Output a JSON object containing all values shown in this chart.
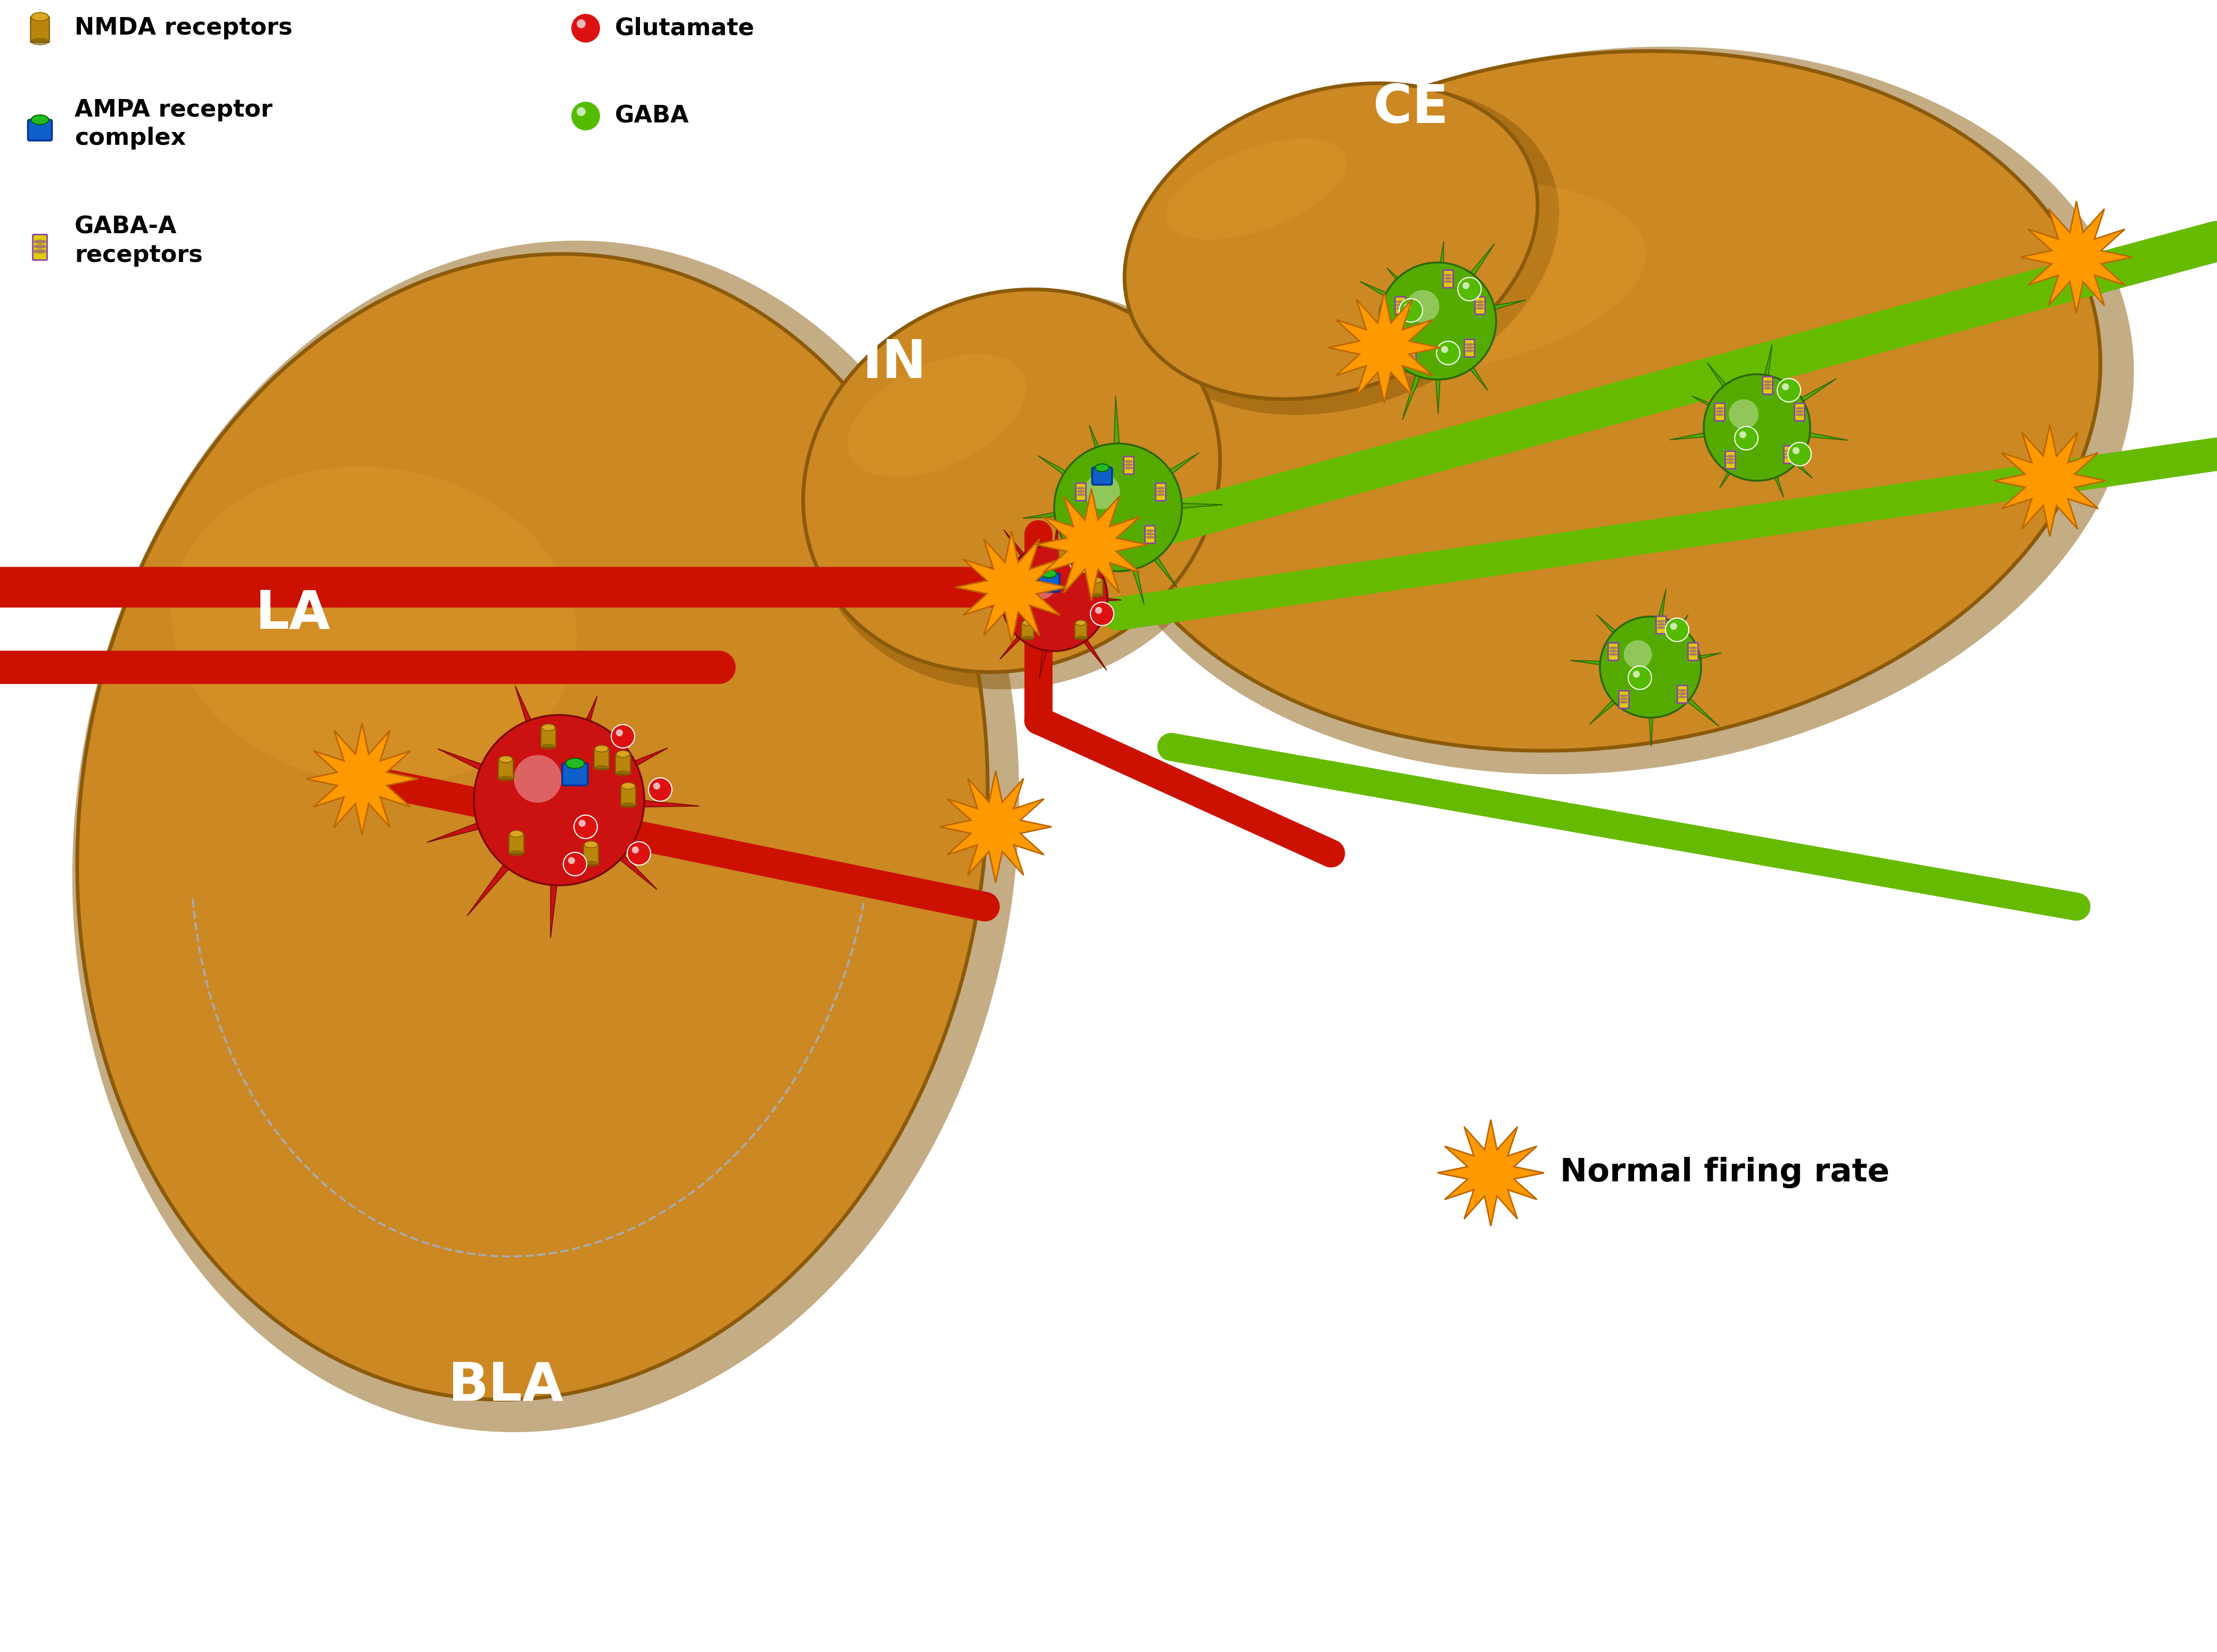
{
  "bg_color": "#ffffff",
  "amygdala_fill": "#CC8822",
  "amygdala_dark": "#8B5A0A",
  "amygdala_light": "#E8A030",
  "neuron_red": "#CC1111",
  "neuron_red_dark": "#7A0800",
  "neuron_green": "#55AA00",
  "neuron_green_dark": "#2A6600",
  "axon_red": "#CC1100",
  "axon_green": "#66BB00",
  "star_fill": "#FF9900",
  "star_edge": "#BB6600",
  "gaba_green": "#55BB00",
  "glut_red": "#DD1111",
  "nmda_fill": "#B8860B",
  "nmda_dark": "#7A5A00",
  "nmda_top": "#DAA520",
  "ampa_blue": "#1060CC",
  "ampa_green": "#22BB22",
  "gabaa_yellow": "#DDCC00",
  "gabaa_purple": "#8844AA",
  "label_BLA": "BLA",
  "label_LA": "LA",
  "label_IN": "IN",
  "label_CE": "CE",
  "legend_fs": 32,
  "label_fs": 72,
  "firing_label": "Normal firing rate",
  "firing_fs": 44
}
